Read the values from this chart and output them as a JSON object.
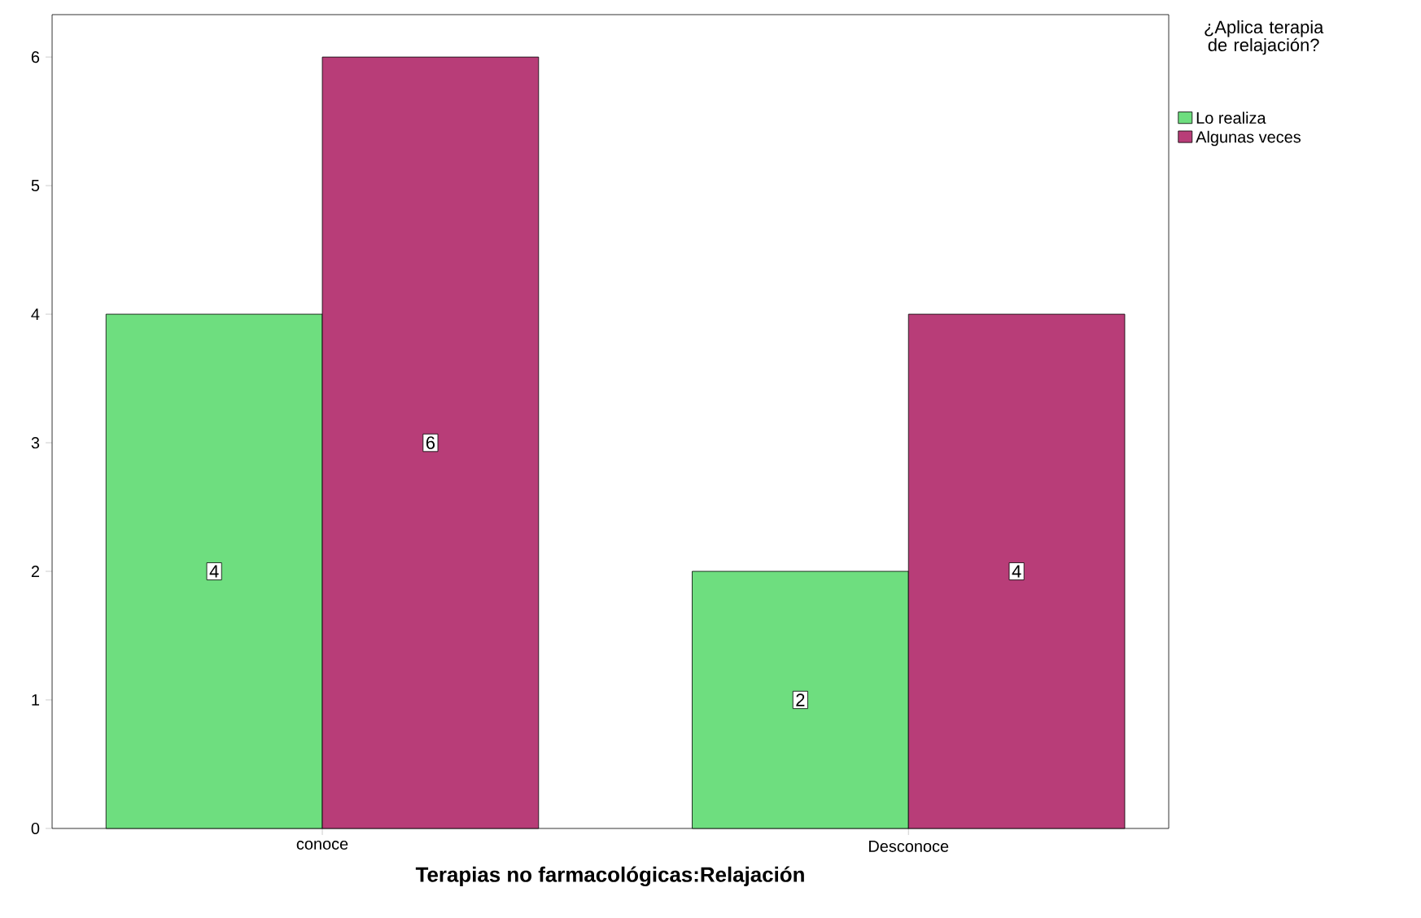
{
  "chart_data": {
    "type": "bar",
    "xlabel": "Terapias no farmacológicas:Relajación",
    "legend_title": "¿Aplica terapia de relajación?",
    "categories": [
      "conoce",
      "Desconoce"
    ],
    "series": [
      {
        "name": "Lo realiza",
        "color": "#6ede7f",
        "values": [
          4,
          2
        ]
      },
      {
        "name": "Algunas veces",
        "color": "#b83d78",
        "values": [
          6,
          4
        ]
      }
    ],
    "ylim": [
      0,
      6.33
    ],
    "yticks": [
      0,
      1,
      2,
      3,
      4,
      5,
      6
    ],
    "data_labels": true,
    "legend": "top right",
    "grid": false
  }
}
